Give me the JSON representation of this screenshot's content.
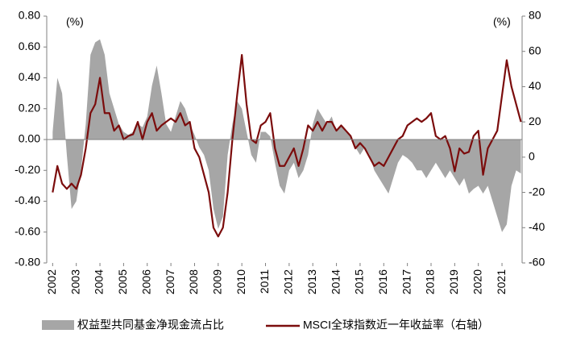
{
  "chart_data": {
    "type": "line",
    "annotations": [
      "(%)",
      "(%)"
    ],
    "x": [
      2002.0,
      2002.2,
      2002.4,
      2002.6,
      2002.8,
      2003.0,
      2003.2,
      2003.4,
      2003.6,
      2003.8,
      2004.0,
      2004.2,
      2004.4,
      2004.6,
      2004.8,
      2005.0,
      2005.2,
      2005.4,
      2005.6,
      2005.8,
      2006.0,
      2006.2,
      2006.4,
      2006.6,
      2006.8,
      2007.0,
      2007.2,
      2007.4,
      2007.6,
      2007.8,
      2008.0,
      2008.2,
      2008.4,
      2008.6,
      2008.8,
      2009.0,
      2009.2,
      2009.4,
      2009.6,
      2009.8,
      2010.0,
      2010.2,
      2010.4,
      2010.6,
      2010.8,
      2011.0,
      2011.2,
      2011.4,
      2011.6,
      2011.8,
      2012.0,
      2012.2,
      2012.4,
      2012.6,
      2012.8,
      2013.0,
      2013.2,
      2013.4,
      2013.6,
      2013.8,
      2014.0,
      2014.2,
      2014.4,
      2014.6,
      2014.8,
      2015.0,
      2015.2,
      2015.4,
      2015.6,
      2015.8,
      2016.0,
      2016.2,
      2016.4,
      2016.6,
      2016.8,
      2017.0,
      2017.2,
      2017.4,
      2017.6,
      2017.8,
      2018.0,
      2018.2,
      2018.4,
      2018.6,
      2018.8,
      2019.0,
      2019.2,
      2019.4,
      2019.6,
      2019.8,
      2020.0,
      2020.2,
      2020.4,
      2020.6,
      2020.8,
      2021.0,
      2021.2,
      2021.4,
      2021.6,
      2021.8
    ],
    "series": [
      {
        "name": "权益型共同基金净现金流占比",
        "type": "area",
        "color": "#a6a6a6",
        "values": [
          0.05,
          0.4,
          0.3,
          -0.1,
          -0.45,
          -0.4,
          -0.2,
          0.1,
          0.55,
          0.63,
          0.65,
          0.55,
          0.3,
          0.2,
          0.1,
          0.05,
          0.03,
          0.05,
          0.1,
          0.08,
          0.15,
          0.35,
          0.48,
          0.3,
          0.1,
          0.05,
          0.15,
          0.25,
          0.2,
          0.1,
          0.03,
          -0.05,
          -0.1,
          -0.2,
          -0.45,
          -0.58,
          -0.5,
          -0.1,
          0.1,
          0.25,
          0.2,
          0.05,
          -0.1,
          -0.15,
          0.05,
          0.05,
          0.02,
          -0.15,
          -0.3,
          -0.35,
          -0.2,
          -0.15,
          -0.25,
          -0.2,
          -0.1,
          0.1,
          0.2,
          0.15,
          0.1,
          0.15,
          0.05,
          0.1,
          0.05,
          0.02,
          -0.05,
          -0.1,
          -0.05,
          -0.1,
          -0.2,
          -0.25,
          -0.3,
          -0.35,
          -0.25,
          -0.15,
          -0.1,
          -0.12,
          -0.15,
          -0.2,
          -0.2,
          -0.25,
          -0.2,
          -0.15,
          -0.2,
          -0.25,
          -0.2,
          -0.25,
          -0.3,
          -0.25,
          -0.35,
          -0.32,
          -0.3,
          -0.35,
          -0.3,
          -0.4,
          -0.5,
          -0.6,
          -0.55,
          -0.3,
          -0.2,
          -0.22
        ]
      },
      {
        "name": "MSCI全球指数近一年收益率（右轴）",
        "type": "line",
        "axis": "y2",
        "color": "#7b0c0c",
        "values": [
          -20,
          -5,
          -15,
          -18,
          -15,
          -18,
          -10,
          5,
          25,
          30,
          45,
          25,
          25,
          15,
          18,
          10,
          12,
          13,
          20,
          10,
          20,
          25,
          15,
          18,
          20,
          22,
          20,
          25,
          18,
          20,
          5,
          0,
          -10,
          -20,
          -40,
          -45,
          -40,
          -20,
          10,
          35,
          58,
          30,
          10,
          8,
          18,
          20,
          25,
          5,
          -5,
          -5,
          0,
          5,
          -5,
          5,
          18,
          15,
          20,
          15,
          20,
          20,
          15,
          18,
          15,
          12,
          5,
          8,
          5,
          0,
          -5,
          -3,
          -5,
          0,
          5,
          10,
          12,
          18,
          20,
          22,
          20,
          22,
          25,
          12,
          10,
          12,
          5,
          -8,
          5,
          2,
          3,
          12,
          15,
          -10,
          5,
          10,
          15,
          35,
          55,
          40,
          30,
          20
        ]
      }
    ],
    "xlim": [
      2001.75,
      2021.85
    ],
    "xticks": [
      2002,
      2003,
      2004,
      2005,
      2006,
      2007,
      2008,
      2009,
      2010,
      2011,
      2012,
      2013,
      2014,
      2015,
      2016,
      2017,
      2018,
      2019,
      2020,
      2021
    ],
    "ylim": [
      -0.8,
      0.8
    ],
    "yticks": [
      {
        "value": 0.8,
        "label": "0.80"
      },
      {
        "value": 0.6,
        "label": "0.60"
      },
      {
        "value": 0.4,
        "label": "0.40"
      },
      {
        "value": 0.2,
        "label": "0.20"
      },
      {
        "value": 0,
        "label": "0.00"
      },
      {
        "value": -0.2,
        "label": "-0.20"
      },
      {
        "value": -0.4,
        "label": "-0.40"
      },
      {
        "value": -0.6,
        "label": "-0.60"
      },
      {
        "value": -0.8,
        "label": "-0.80"
      }
    ],
    "y2lim": [
      -60,
      80
    ],
    "y2ticks": [
      80,
      60,
      40,
      20,
      0,
      -20,
      -40,
      -60
    ]
  }
}
